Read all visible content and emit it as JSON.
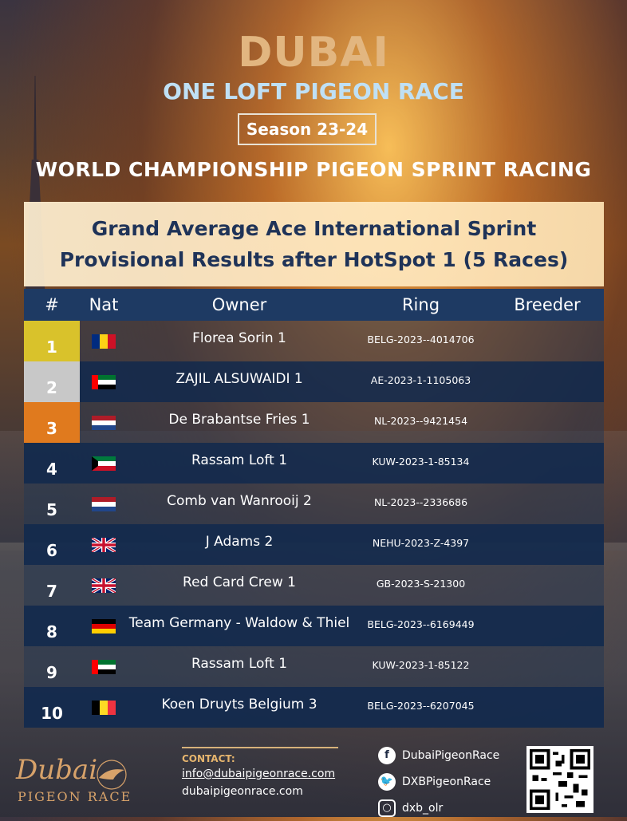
{
  "header": {
    "brand": "DUBAI",
    "subtitle": "ONE LOFT PIGEON RACE",
    "season": "Season 23-24",
    "championship": "WORLD CHAMPIONSHIP PIGEON SPRINT RACING"
  },
  "panel": {
    "line1": "Grand Average Ace International Sprint",
    "line2": "Provisional Results after HotSpot 1 (5 Races)"
  },
  "table": {
    "headers": {
      "rank": "#",
      "nat": "Nat",
      "owner": "Owner",
      "ring": "Ring",
      "breeder": "Breeder"
    },
    "rows": [
      {
        "rank": "1",
        "flag": "romania",
        "owner": "Florea Sorin 1",
        "ring": "BELG-2023--4014706",
        "rank_color": "#d9c22b"
      },
      {
        "rank": "2",
        "flag": "uae",
        "owner": "ZAJIL ALSUWAIDI 1",
        "ring": "AE-2023-1-1105063",
        "rank_color": "#c8c8c8"
      },
      {
        "rank": "3",
        "flag": "netherlands",
        "owner": "De Brabantse Fries 1",
        "ring": "NL-2023--9421454",
        "rank_color": "#e07a1e"
      },
      {
        "rank": "4",
        "flag": "kuwait",
        "owner": "Rassam Loft 1",
        "ring": "KUW-2023-1-85134"
      },
      {
        "rank": "5",
        "flag": "netherlands",
        "owner": "Comb van Wanrooij 2",
        "ring": "NL-2023--2336686"
      },
      {
        "rank": "6",
        "flag": "uk",
        "owner": "J Adams 2",
        "ring": "NEHU-2023-Z-4397"
      },
      {
        "rank": "7",
        "flag": "uk",
        "owner": "Red Card Crew 1",
        "ring": "GB-2023-S-21300"
      },
      {
        "rank": "8",
        "flag": "germany",
        "owner": "Team Germany - Waldow & Thiel",
        "ring": "BELG-2023--6169449"
      },
      {
        "rank": "9",
        "flag": "uae",
        "owner": "Rassam Loft 1",
        "ring": "KUW-2023-1-85122"
      },
      {
        "rank": "10",
        "flag": "belgium",
        "owner": "Koen Druyts Belgium 3",
        "ring": "BELG-2023--6207045"
      }
    ]
  },
  "footer": {
    "logo_script": "Dubai",
    "logo_sub": "PIGEON RACE",
    "contact_label": "CONTACT:",
    "email": "info@dubaipigeonrace.com",
    "website": "dubaipigeonrace.com",
    "facebook": "DubaiPigeonRace",
    "twitter": "DXBPigeonRace",
    "instagram": "dxb_olr"
  }
}
